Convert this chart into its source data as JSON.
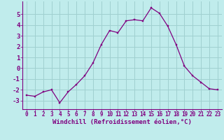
{
  "x": [
    0,
    1,
    2,
    3,
    4,
    5,
    6,
    7,
    8,
    9,
    10,
    11,
    12,
    13,
    14,
    15,
    16,
    17,
    18,
    19,
    20,
    21,
    22,
    23
  ],
  "y": [
    -2.5,
    -2.6,
    -2.2,
    -2.0,
    -3.2,
    -2.2,
    -1.5,
    -0.7,
    0.5,
    2.2,
    3.5,
    3.3,
    4.4,
    4.5,
    4.4,
    5.6,
    5.1,
    3.9,
    2.2,
    0.2,
    -0.7,
    -1.3,
    -1.9,
    -2.0
  ],
  "line_color": "#800080",
  "marker_color": "#800080",
  "bg_color": "#c0ecec",
  "grid_color": "#a0d0d0",
  "xlabel": "Windchill (Refroidissement éolien,°C)",
  "xlabel_color": "#800080",
  "tick_color": "#800080",
  "ylim": [
    -3.8,
    6.2
  ],
  "yticks": [
    -3,
    -2,
    -1,
    0,
    1,
    2,
    3,
    4,
    5
  ],
  "xlim": [
    -0.5,
    23.5
  ],
  "xticks": [
    0,
    1,
    2,
    3,
    4,
    5,
    6,
    7,
    8,
    9,
    10,
    11,
    12,
    13,
    14,
    15,
    16,
    17,
    18,
    19,
    20,
    21,
    22,
    23
  ]
}
